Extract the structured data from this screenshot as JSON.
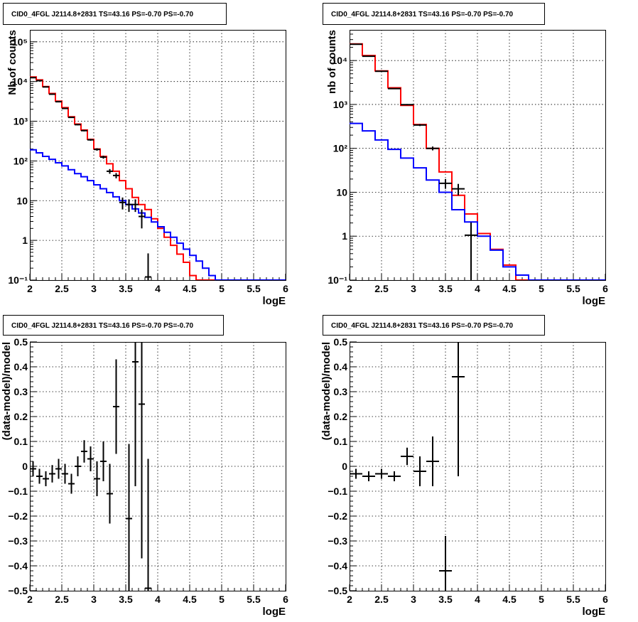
{
  "chart_data": [
    {
      "type": "line",
      "title": "CID0_4FGL J2114.8+2831 TS=43.16 PS=-0.70 PS=-0.70",
      "xlabel": "logE",
      "ylabel": "Nb of counts",
      "yscale": "log",
      "xlim": [
        2,
        6
      ],
      "ylim": [
        0.1,
        200000
      ],
      "grid": true,
      "xticks": [
        "2",
        "2.5",
        "3",
        "3.5",
        "4",
        "4.5",
        "5",
        "5.5",
        "6"
      ],
      "yticks": [
        "10⁻¹",
        "1",
        "10",
        "10²",
        "10³",
        "10⁴",
        "10⁵"
      ],
      "bin_edges": [
        2.0,
        2.1,
        2.2,
        2.3,
        2.4,
        2.5,
        2.6,
        2.7,
        2.8,
        2.9,
        3.0,
        3.1,
        3.2,
        3.3,
        3.4,
        3.5,
        3.6,
        3.7,
        3.8,
        3.9,
        4.0,
        4.1,
        4.2,
        4.3,
        4.4,
        4.5,
        4.6,
        4.7,
        4.8,
        4.9,
        5.0,
        5.1,
        5.2,
        5.3,
        5.4,
        5.5,
        5.6,
        5.7,
        5.8,
        5.9,
        6.0
      ],
      "series": [
        {
          "color": "#ff0000",
          "kind": "histogram",
          "values": [
            13000,
            11000,
            7500,
            5000,
            3200,
            2200,
            1300,
            850,
            600,
            350,
            200,
            130,
            85,
            55,
            32,
            20,
            12,
            8,
            6,
            3.5,
            2.0,
            1.2,
            0.75,
            0.45,
            0.28,
            0.13,
            0.1,
            0.1,
            0.1,
            0.1,
            0.1,
            0.1,
            0.1,
            0.1,
            0.1,
            0.1,
            0.1,
            0.1,
            0.1,
            0.1
          ]
        },
        {
          "color": "#0000ff",
          "kind": "histogram",
          "values": [
            190,
            160,
            130,
            110,
            90,
            75,
            60,
            48,
            40,
            32,
            25,
            20,
            16,
            12.5,
            10,
            8,
            6.2,
            4.9,
            3.8,
            2.9,
            2.2,
            1.6,
            1.2,
            0.85,
            0.6,
            0.42,
            0.3,
            0.2,
            0.13,
            0.1,
            0.1,
            0.1,
            0.1,
            0.1,
            0.1,
            0.1,
            0.1,
            0.1,
            0.1,
            0.1
          ]
        },
        {
          "color": "#000000",
          "kind": "points",
          "x": [
            2.05,
            2.15,
            2.25,
            2.35,
            2.45,
            2.55,
            2.65,
            2.75,
            2.85,
            2.95,
            3.05,
            3.15,
            3.25,
            3.35,
            3.45,
            3.55,
            3.65,
            3.75,
            3.85
          ],
          "y": [
            12500,
            10500,
            7300,
            4800,
            3100,
            2100,
            1250,
            820,
            580,
            340,
            195,
            125,
            55,
            43,
            9,
            8,
            8,
            4,
            0.12
          ],
          "err": [
            112,
            102,
            85,
            69,
            56,
            46,
            35,
            29,
            24,
            18,
            14,
            11,
            7.5,
            6.5,
            3,
            2.8,
            2.8,
            2,
            0.35
          ]
        }
      ]
    },
    {
      "type": "line",
      "title": "CID0_4FGL J2114.8+2831 TS=43.16 PS=-0.70 PS=-0.70",
      "xlabel": "logE",
      "ylabel": "nb of counts",
      "yscale": "log",
      "xlim": [
        2,
        6
      ],
      "ylim": [
        0.1,
        50000
      ],
      "grid": true,
      "xticks": [
        "2",
        "2.5",
        "3",
        "3.5",
        "4",
        "4.5",
        "5",
        "5.5",
        "6"
      ],
      "yticks": [
        "10⁻¹",
        "1",
        "10",
        "10²",
        "10³",
        "10⁴"
      ],
      "bin_edges": [
        2.0,
        2.2,
        2.4,
        2.6,
        2.8,
        3.0,
        3.2,
        3.4,
        3.6,
        3.8,
        4.0,
        4.2,
        4.4,
        4.6,
        4.8,
        5.0,
        5.2,
        5.4,
        5.6,
        5.8,
        6.0
      ],
      "series": [
        {
          "color": "#ff0000",
          "kind": "histogram",
          "values": [
            24000,
            13000,
            5800,
            2400,
            950,
            350,
            100,
            29,
            8.5,
            3.2,
            1.15,
            0.5,
            0.22,
            0.1,
            0.1,
            0.1,
            0.1,
            0.1,
            0.1,
            0.1
          ]
        },
        {
          "color": "#0000ff",
          "kind": "histogram",
          "values": [
            370,
            250,
            155,
            95,
            60,
            36,
            19,
            10,
            4.0,
            2.1,
            1.0,
            0.48,
            0.2,
            0.13,
            0.1,
            0.1,
            0.1,
            0.1,
            0.1,
            0.1
          ]
        },
        {
          "color": "#000000",
          "kind": "points",
          "x": [
            2.1,
            2.3,
            2.5,
            2.7,
            2.9,
            3.1,
            3.3,
            3.5,
            3.7,
            3.9
          ],
          "y": [
            23500,
            12500,
            5700,
            2300,
            990,
            340,
            100,
            16,
            12,
            1.05
          ],
          "err": [
            153,
            112,
            75,
            48,
            31,
            18,
            10,
            4,
            3.5,
            1.0
          ]
        }
      ]
    },
    {
      "type": "scatter",
      "title": "CID0_4FGL J2114.8+2831 TS=43.16 PS=-0.70 PS=-0.70",
      "xlabel": "logE",
      "ylabel": "(data-model)/model",
      "xlim": [
        2,
        6
      ],
      "ylim": [
        -0.5,
        0.5
      ],
      "grid": true,
      "xticks": [
        "2",
        "2.5",
        "3",
        "3.5",
        "4",
        "4.5",
        "5",
        "5.5",
        "6"
      ],
      "yticks": [
        "−0.5",
        "−0.4",
        "−0.3",
        "−0.2",
        "−0.1",
        "0",
        "0.1",
        "0.2",
        "0.3",
        "0.4",
        "0.5"
      ],
      "series": [
        {
          "color": "#000000",
          "x": [
            2.05,
            2.15,
            2.25,
            2.35,
            2.45,
            2.55,
            2.65,
            2.75,
            2.85,
            2.95,
            3.05,
            3.15,
            3.25,
            3.35,
            3.55,
            3.65,
            3.75,
            3.85
          ],
          "y": [
            -0.01,
            -0.04,
            -0.05,
            -0.03,
            -0.01,
            -0.03,
            -0.07,
            0.0,
            0.06,
            0.03,
            -0.05,
            0.02,
            -0.11,
            0.24,
            -0.21,
            0.42,
            0.25,
            -0.49
          ],
          "err": [
            0.03,
            0.03,
            0.03,
            0.035,
            0.04,
            0.04,
            0.04,
            0.04,
            0.045,
            0.05,
            0.07,
            0.08,
            0.12,
            0.19,
            0.3,
            0.5,
            0.62,
            0.52
          ]
        }
      ]
    },
    {
      "type": "scatter",
      "title": "CID0_4FGL J2114.8+2831 TS=43.16 PS=-0.70 PS=-0.70",
      "xlabel": "logE",
      "ylabel": "(data-model)/model",
      "xlim": [
        2,
        6
      ],
      "ylim": [
        -0.5,
        0.5
      ],
      "grid": true,
      "xticks": [
        "2",
        "2.5",
        "3",
        "3.5",
        "4",
        "4.5",
        "5",
        "5.5",
        "6"
      ],
      "yticks": [
        "−0.5",
        "−0.4",
        "−0.3",
        "−0.2",
        "−0.1",
        "0",
        "0.1",
        "0.2",
        "0.3",
        "0.4",
        "0.5"
      ],
      "series": [
        {
          "color": "#000000",
          "x": [
            2.1,
            2.3,
            2.5,
            2.7,
            2.9,
            3.1,
            3.3,
            3.5,
            3.7
          ],
          "y": [
            -0.03,
            -0.04,
            -0.03,
            -0.04,
            0.04,
            -0.02,
            0.02,
            -0.42,
            0.36
          ],
          "err": [
            0.02,
            0.02,
            0.02,
            0.02,
            0.035,
            0.06,
            0.1,
            0.14,
            0.4
          ]
        }
      ]
    }
  ]
}
